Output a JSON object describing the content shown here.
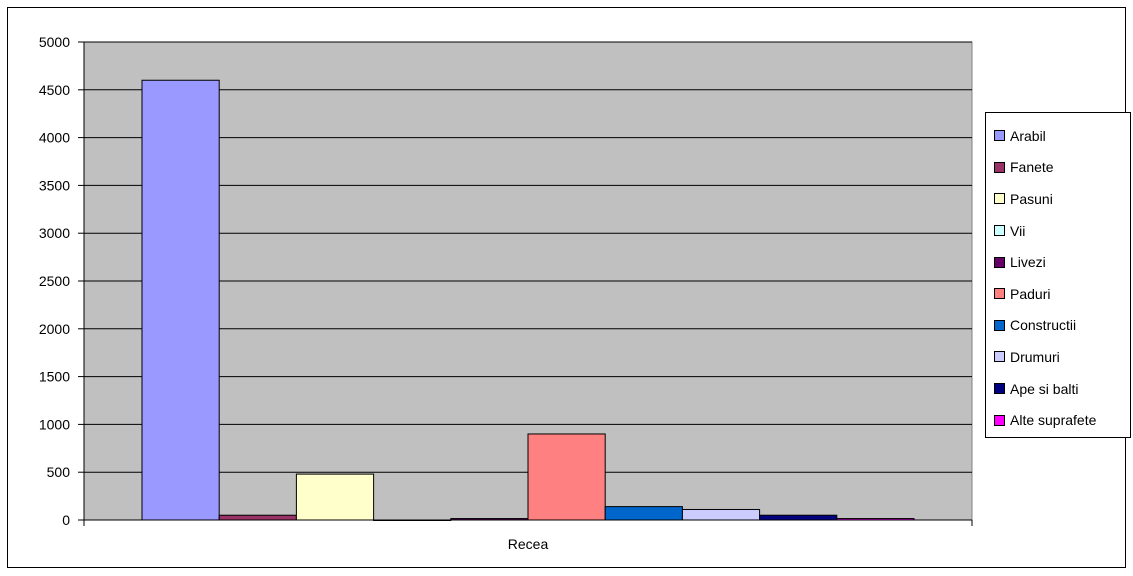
{
  "chart_data": {
    "type": "bar",
    "categories": [
      "Recea"
    ],
    "series": [
      {
        "name": "Arabil",
        "values": [
          4600
        ],
        "color": "#9999ff"
      },
      {
        "name": "Fanete",
        "values": [
          50
        ],
        "color": "#993366"
      },
      {
        "name": "Pasuni",
        "values": [
          480
        ],
        "color": "#ffffcc"
      },
      {
        "name": "Vii",
        "values": [
          0
        ],
        "color": "#ccffff"
      },
      {
        "name": "Livezi",
        "values": [
          15
        ],
        "color": "#660066"
      },
      {
        "name": "Paduri",
        "values": [
          900
        ],
        "color": "#ff8080"
      },
      {
        "name": "Constructii",
        "values": [
          140
        ],
        "color": "#0066cc"
      },
      {
        "name": "Drumuri",
        "values": [
          110
        ],
        "color": "#ccccff"
      },
      {
        "name": "Ape si balti",
        "values": [
          50
        ],
        "color": "#000080"
      },
      {
        "name": "Alte suprafete",
        "values": [
          15
        ],
        "color": "#ff00ff"
      }
    ],
    "ylim": [
      0,
      5000
    ],
    "yticks": [
      "0",
      "500",
      "1000",
      "1500",
      "2000",
      "2500",
      "3000",
      "3500",
      "4000",
      "4500",
      "5000"
    ],
    "xlabel": "",
    "ylabel": "",
    "grid": true,
    "legend_position": "right",
    "plot_background": "#c0c0c0"
  }
}
